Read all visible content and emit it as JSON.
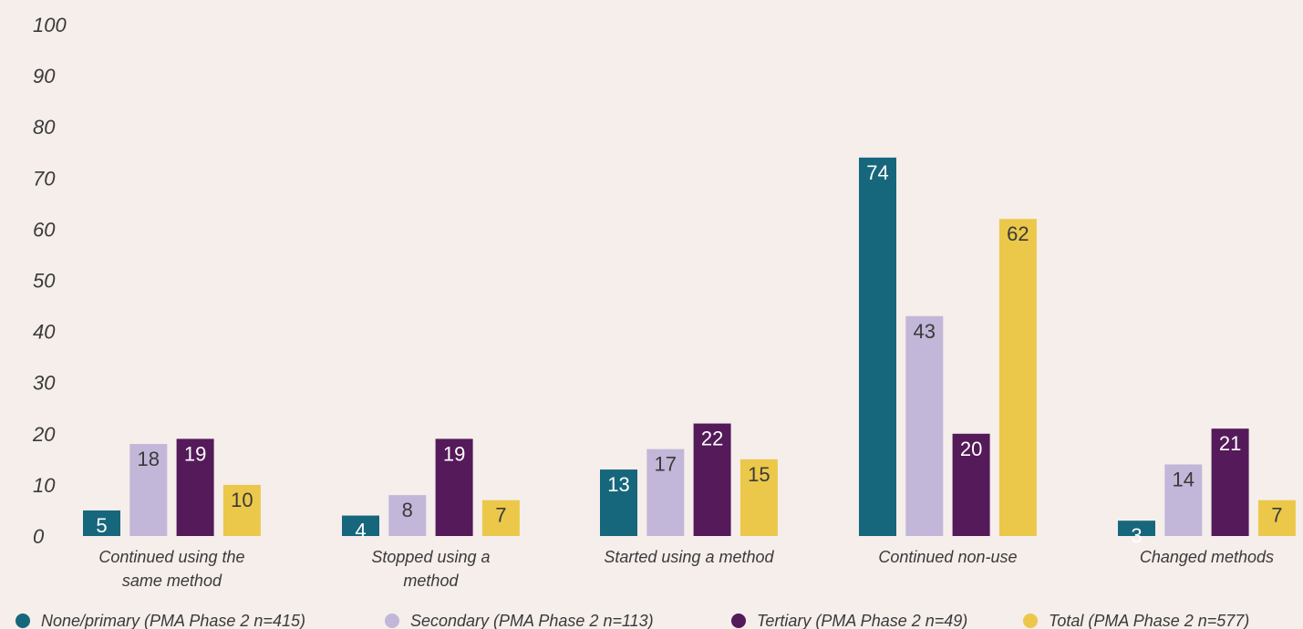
{
  "chart_data": {
    "type": "bar",
    "categories": [
      [
        "Continued using the",
        "same method"
      ],
      [
        "Stopped using a",
        "method"
      ],
      [
        "Started using a method"
      ],
      [
        "Continued non-use"
      ],
      [
        "Changed methods"
      ]
    ],
    "series": [
      {
        "name": "None/primary (PMA Phase 2 n=415)",
        "color": "#16677c",
        "label_color": "#ffffff",
        "values": [
          5,
          4,
          13,
          74,
          3
        ]
      },
      {
        "name": "Secondary (PMA Phase 2 n=113)",
        "color": "#c2b7d8",
        "label_color": "#3a3a3a",
        "values": [
          18,
          8,
          17,
          43,
          14
        ]
      },
      {
        "name": "Tertiary (PMA Phase 2 n=49)",
        "color": "#541a59",
        "label_color": "#ffffff",
        "values": [
          19,
          19,
          22,
          20,
          21
        ]
      },
      {
        "name": "Total (PMA Phase 2 n=577)",
        "color": "#ebc84a",
        "label_color": "#3a3a3a",
        "values": [
          10,
          7,
          15,
          62,
          7
        ]
      }
    ],
    "ylim": [
      0,
      100
    ],
    "yticks": [
      0,
      10,
      20,
      30,
      40,
      50,
      60,
      70,
      80,
      90,
      100
    ],
    "grid": false,
    "legend": "bottom",
    "title": "",
    "xlabel": "",
    "ylabel": ""
  }
}
